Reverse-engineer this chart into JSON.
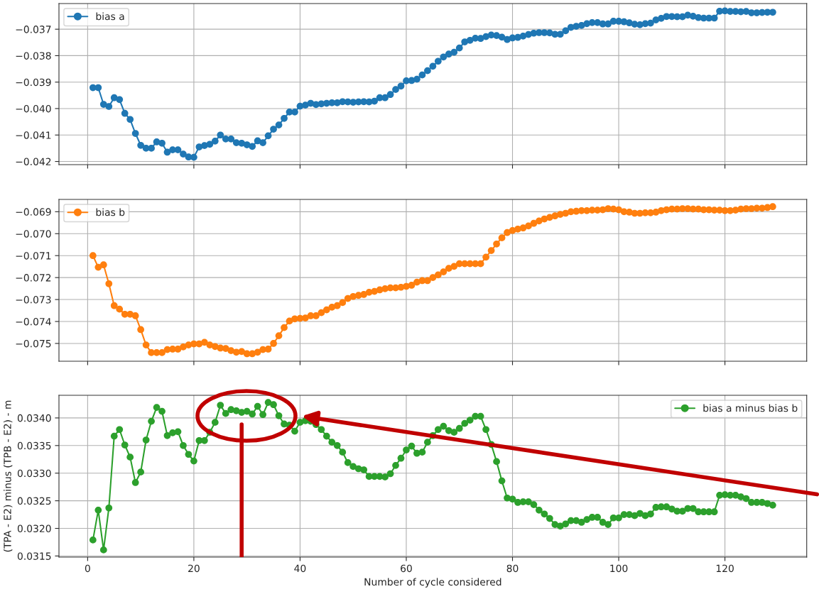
{
  "chart_data": [
    {
      "type": "line",
      "marker": "circle",
      "grid": true,
      "legend": "top left",
      "tick_labels": "y",
      "xlim": [
        -5.4,
        135.4
      ],
      "xticks": [
        0,
        20,
        40,
        60,
        80,
        100,
        120
      ],
      "ylim": [
        -0.04212,
        -0.03603
      ],
      "yticks": [
        {
          "value": -0.042,
          "label": "−0.042"
        },
        {
          "value": -0.041,
          "label": "−0.041"
        },
        {
          "value": -0.04,
          "label": "−0.040"
        },
        {
          "value": -0.039,
          "label": "−0.039"
        },
        {
          "value": -0.038,
          "label": "−0.038"
        },
        {
          "value": -0.037,
          "label": "−0.037"
        }
      ],
      "series": [
        {
          "name": "bias a",
          "color": "#1f77b4",
          "x": [
            1,
            2,
            3,
            4,
            5,
            6,
            7,
            8,
            9,
            10,
            11,
            12,
            13,
            14,
            15,
            16,
            17,
            18,
            19,
            20,
            21,
            22,
            23,
            24,
            25,
            26,
            27,
            28,
            29,
            30,
            31,
            32,
            33,
            34,
            35,
            36,
            37,
            38,
            39,
            40,
            41,
            42,
            43,
            44,
            45,
            46,
            47,
            48,
            49,
            50,
            51,
            52,
            53,
            54,
            55,
            56,
            57,
            58,
            59,
            60,
            61,
            62,
            63,
            64,
            65,
            66,
            67,
            68,
            69,
            70,
            71,
            72,
            73,
            74,
            75,
            76,
            77,
            78,
            79,
            80,
            81,
            82,
            83,
            84,
            85,
            86,
            87,
            88,
            89,
            90,
            91,
            92,
            93,
            94,
            95,
            96,
            97,
            98,
            99,
            100,
            101,
            102,
            103,
            104,
            105,
            106,
            107,
            108,
            109,
            110,
            111,
            112,
            113,
            114,
            115,
            116,
            117,
            118,
            119,
            120,
            121,
            122,
            123,
            124,
            125,
            126,
            127,
            128,
            129
          ],
          "values": [
            -0.03921,
            -0.03921,
            -0.03984,
            -0.03992,
            -0.03959,
            -0.03966,
            -0.04018,
            -0.04041,
            -0.04094,
            -0.04139,
            -0.0415,
            -0.0415,
            -0.04126,
            -0.04131,
            -0.04165,
            -0.04156,
            -0.04156,
            -0.04172,
            -0.04183,
            -0.04184,
            -0.04145,
            -0.0414,
            -0.04135,
            -0.04123,
            -0.041,
            -0.04115,
            -0.04115,
            -0.04129,
            -0.04131,
            -0.04137,
            -0.04143,
            -0.04122,
            -0.04129,
            -0.04103,
            -0.04078,
            -0.04062,
            -0.04037,
            -0.04013,
            -0.04013,
            -0.03991,
            -0.03987,
            -0.0398,
            -0.03985,
            -0.03982,
            -0.0398,
            -0.03978,
            -0.03978,
            -0.03974,
            -0.03975,
            -0.03976,
            -0.03975,
            -0.03974,
            -0.03975,
            -0.03972,
            -0.03959,
            -0.03959,
            -0.03947,
            -0.03928,
            -0.03915,
            -0.03895,
            -0.03894,
            -0.03889,
            -0.03873,
            -0.03857,
            -0.0384,
            -0.03821,
            -0.03805,
            -0.03794,
            -0.03787,
            -0.03771,
            -0.03748,
            -0.03742,
            -0.03734,
            -0.03735,
            -0.03728,
            -0.03722,
            -0.03724,
            -0.0373,
            -0.03739,
            -0.03733,
            -0.03731,
            -0.03726,
            -0.0372,
            -0.03715,
            -0.03713,
            -0.03713,
            -0.03714,
            -0.03719,
            -0.03719,
            -0.03706,
            -0.03693,
            -0.03689,
            -0.03686,
            -0.03679,
            -0.03675,
            -0.03675,
            -0.0368,
            -0.0368,
            -0.0367,
            -0.0367,
            -0.03672,
            -0.03676,
            -0.03681,
            -0.03683,
            -0.03679,
            -0.03677,
            -0.03665,
            -0.03659,
            -0.03652,
            -0.03652,
            -0.03653,
            -0.03653,
            -0.03647,
            -0.03651,
            -0.03656,
            -0.03658,
            -0.03658,
            -0.03658,
            -0.03632,
            -0.03631,
            -0.03633,
            -0.03633,
            -0.03634,
            -0.03633,
            -0.03638,
            -0.03638,
            -0.03637,
            -0.03636,
            -0.03636
          ]
        }
      ]
    },
    {
      "type": "line",
      "marker": "circle",
      "grid": true,
      "legend": "top left",
      "tick_labels": "y",
      "xlim": [
        -5.4,
        135.4
      ],
      "xticks": [
        0,
        20,
        40,
        60,
        80,
        100,
        120
      ],
      "ylim": [
        -0.07581,
        -0.06844
      ],
      "yticks": [
        {
          "value": -0.075,
          "label": "−0.075"
        },
        {
          "value": -0.074,
          "label": "−0.074"
        },
        {
          "value": -0.073,
          "label": "−0.073"
        },
        {
          "value": -0.072,
          "label": "−0.072"
        },
        {
          "value": -0.071,
          "label": "−0.071"
        },
        {
          "value": -0.07,
          "label": "−0.070"
        },
        {
          "value": -0.069,
          "label": "−0.069"
        }
      ],
      "series": [
        {
          "name": "bias b",
          "color": "#ff7f0e",
          "x": [
            1,
            2,
            3,
            4,
            5,
            6,
            7,
            8,
            9,
            10,
            11,
            12,
            13,
            14,
            15,
            16,
            17,
            18,
            19,
            20,
            21,
            22,
            23,
            24,
            25,
            26,
            27,
            28,
            29,
            30,
            31,
            32,
            33,
            34,
            35,
            36,
            37,
            38,
            39,
            40,
            41,
            42,
            43,
            44,
            45,
            46,
            47,
            48,
            49,
            50,
            51,
            52,
            53,
            54,
            55,
            56,
            57,
            58,
            59,
            60,
            61,
            62,
            63,
            64,
            65,
            66,
            67,
            68,
            69,
            70,
            71,
            72,
            73,
            74,
            75,
            76,
            77,
            78,
            79,
            80,
            81,
            82,
            83,
            84,
            85,
            86,
            87,
            88,
            89,
            90,
            91,
            92,
            93,
            94,
            95,
            96,
            97,
            98,
            99,
            100,
            101,
            102,
            103,
            104,
            105,
            106,
            107,
            108,
            109,
            110,
            111,
            112,
            113,
            114,
            115,
            116,
            117,
            118,
            119,
            120,
            121,
            122,
            123,
            124,
            125,
            126,
            127,
            128,
            129
          ],
          "values": [
            -0.071,
            -0.07153,
            -0.07142,
            -0.07228,
            -0.07328,
            -0.07344,
            -0.07367,
            -0.07367,
            -0.07374,
            -0.07437,
            -0.07507,
            -0.07542,
            -0.07542,
            -0.07542,
            -0.07528,
            -0.07526,
            -0.07526,
            -0.07516,
            -0.07507,
            -0.07502,
            -0.07502,
            -0.07495,
            -0.07507,
            -0.07514,
            -0.07521,
            -0.07523,
            -0.07533,
            -0.0754,
            -0.07537,
            -0.07547,
            -0.07547,
            -0.0754,
            -0.07528,
            -0.07526,
            -0.075,
            -0.07465,
            -0.07428,
            -0.07398,
            -0.07388,
            -0.07386,
            -0.07384,
            -0.07374,
            -0.07374,
            -0.0736,
            -0.07347,
            -0.07335,
            -0.07328,
            -0.07314,
            -0.07295,
            -0.07286,
            -0.07281,
            -0.07277,
            -0.07267,
            -0.07263,
            -0.07256,
            -0.07251,
            -0.07247,
            -0.07247,
            -0.07244,
            -0.0724,
            -0.07235,
            -0.07221,
            -0.07214,
            -0.07214,
            -0.072,
            -0.07188,
            -0.07174,
            -0.07158,
            -0.07149,
            -0.07137,
            -0.07137,
            -0.07137,
            -0.07137,
            -0.07137,
            -0.07107,
            -0.07077,
            -0.07047,
            -0.07019,
            -0.06995,
            -0.06986,
            -0.06979,
            -0.06974,
            -0.06965,
            -0.06953,
            -0.06942,
            -0.06933,
            -0.06926,
            -0.06919,
            -0.06912,
            -0.06907,
            -0.069,
            -0.06898,
            -0.06895,
            -0.06895,
            -0.06893,
            -0.06893,
            -0.06891,
            -0.06886,
            -0.06888,
            -0.06891,
            -0.069,
            -0.06902,
            -0.06907,
            -0.06907,
            -0.06905,
            -0.06905,
            -0.06902,
            -0.06895,
            -0.06891,
            -0.06888,
            -0.06888,
            -0.06886,
            -0.06886,
            -0.06888,
            -0.06888,
            -0.06891,
            -0.06891,
            -0.06893,
            -0.06893,
            -0.06895,
            -0.06895,
            -0.06893,
            -0.06888,
            -0.06886,
            -0.06886,
            -0.06884,
            -0.06884,
            -0.06881,
            -0.06877
          ]
        }
      ]
    },
    {
      "type": "line",
      "marker": "circle",
      "grid": true,
      "legend": "top right",
      "ref_lines": [
        {
          "axis": "x",
          "value": 29,
          "color": "#c00000"
        }
      ],
      "xlabel": "Number of cycle considered",
      "ylabel": "(TPA - E2) minus (TPB - E2) - m",
      "xlim": [
        -5.4,
        135.4
      ],
      "xticks": [
        0,
        20,
        40,
        60,
        80,
        100,
        120
      ],
      "ylim": [
        0.03148,
        0.03441
      ],
      "yticks": [
        {
          "value": 0.0315,
          "label": "0.0315"
        },
        {
          "value": 0.032,
          "label": "0.0320"
        },
        {
          "value": 0.0325,
          "label": "0.0325"
        },
        {
          "value": 0.033,
          "label": "0.0330"
        },
        {
          "value": 0.0335,
          "label": "0.0335"
        },
        {
          "value": 0.034,
          "label": "0.0340"
        }
      ],
      "series": [
        {
          "name": "bias a minus bias b",
          "color": "#2ca02c",
          "x": [
            1,
            2,
            3,
            4,
            5,
            6,
            7,
            8,
            9,
            10,
            11,
            12,
            13,
            14,
            15,
            16,
            17,
            18,
            19,
            20,
            21,
            22,
            23,
            24,
            25,
            26,
            27,
            28,
            29,
            30,
            31,
            32,
            33,
            34,
            35,
            36,
            37,
            38,
            39,
            40,
            41,
            42,
            43,
            44,
            45,
            46,
            47,
            48,
            49,
            50,
            51,
            52,
            53,
            54,
            55,
            56,
            57,
            58,
            59,
            60,
            61,
            62,
            63,
            64,
            65,
            66,
            67,
            68,
            69,
            70,
            71,
            72,
            73,
            74,
            75,
            76,
            77,
            78,
            79,
            80,
            81,
            82,
            83,
            84,
            85,
            86,
            87,
            88,
            89,
            90,
            91,
            92,
            93,
            94,
            95,
            96,
            97,
            98,
            99,
            100,
            101,
            102,
            103,
            104,
            105,
            106,
            107,
            108,
            109,
            110,
            111,
            112,
            113,
            114,
            115,
            116,
            117,
            118,
            119,
            120,
            121,
            122,
            123,
            124,
            125,
            126,
            127,
            128,
            129
          ],
          "values": [
            0.03179,
            0.03233,
            0.03161,
            0.03237,
            0.03367,
            0.03379,
            0.03351,
            0.03329,
            0.03283,
            0.03302,
            0.0336,
            0.03394,
            0.03419,
            0.03412,
            0.03368,
            0.03373,
            0.03375,
            0.0335,
            0.03334,
            0.03322,
            0.03359,
            0.03359,
            0.03374,
            0.03392,
            0.03423,
            0.03408,
            0.03415,
            0.03413,
            0.0341,
            0.03412,
            0.03407,
            0.03421,
            0.03406,
            0.03428,
            0.03424,
            0.03404,
            0.03389,
            0.03387,
            0.03376,
            0.03392,
            0.03395,
            0.03394,
            0.03388,
            0.03379,
            0.03367,
            0.03356,
            0.0335,
            0.03338,
            0.03319,
            0.03312,
            0.03308,
            0.03306,
            0.03294,
            0.03294,
            0.03294,
            0.03293,
            0.03299,
            0.03314,
            0.03327,
            0.03342,
            0.03349,
            0.03336,
            0.03338,
            0.03356,
            0.03368,
            0.03379,
            0.03385,
            0.03377,
            0.03374,
            0.03381,
            0.0339,
            0.03396,
            0.03403,
            0.03403,
            0.03379,
            0.03352,
            0.03321,
            0.03286,
            0.03255,
            0.03253,
            0.03247,
            0.03248,
            0.03248,
            0.03243,
            0.03233,
            0.03226,
            0.03218,
            0.03207,
            0.03204,
            0.03208,
            0.03214,
            0.03214,
            0.03211,
            0.03216,
            0.0322,
            0.0322,
            0.03211,
            0.03207,
            0.03219,
            0.03219,
            0.03225,
            0.03225,
            0.03223,
            0.03227,
            0.03223,
            0.03226,
            0.03238,
            0.03239,
            0.03239,
            0.03235,
            0.03231,
            0.03231,
            0.03236,
            0.03236,
            0.0323,
            0.0323,
            0.0323,
            0.0323,
            0.0326,
            0.03261,
            0.0326,
            0.0326,
            0.03257,
            0.03254,
            0.03247,
            0.03247,
            0.03247,
            0.03245,
            0.03242
          ]
        }
      ]
    }
  ]
}
